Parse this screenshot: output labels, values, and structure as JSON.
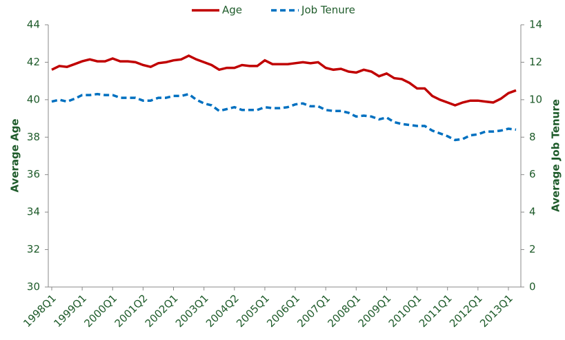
{
  "chart_data": {
    "type": "line",
    "y_label": "Average Age",
    "y2_label": "Average Job Tenure",
    "categories": [
      "1998Q1",
      null,
      null,
      null,
      "1999Q1",
      null,
      null,
      null,
      "2000Q1",
      null,
      null,
      null,
      "2001Q2",
      null,
      null,
      null,
      "2002Q1",
      null,
      null,
      null,
      "2003Q1",
      null,
      null,
      null,
      "2004Q2",
      null,
      null,
      null,
      "2005Q1",
      null,
      null,
      null,
      "2006Q1",
      null,
      null,
      null,
      "2007Q1",
      null,
      null,
      null,
      "2008Q1",
      null,
      null,
      null,
      "2009Q1",
      null,
      null,
      null,
      "2010Q1",
      null,
      null,
      null,
      "2011Q1",
      null,
      null,
      null,
      "2012Q1",
      null,
      null,
      null,
      "2013Q1",
      null
    ],
    "series": [
      {
        "name": "Age",
        "color": "#c00000",
        "dash": false,
        "values": [
          41.6,
          41.8,
          41.75,
          41.9,
          42.05,
          42.15,
          42.05,
          42.05,
          42.2,
          42.05,
          42.05,
          42.0,
          41.85,
          41.75,
          41.95,
          42.0,
          42.1,
          42.15,
          42.35,
          42.15,
          42.0,
          41.85,
          41.6,
          41.7,
          41.7,
          41.85,
          41.8,
          41.8,
          42.1,
          41.9,
          41.9,
          41.9,
          41.95,
          42.0,
          41.95,
          42.0,
          41.7,
          41.6,
          41.65,
          41.5,
          41.45,
          41.6,
          41.5,
          41.25,
          41.4,
          41.15,
          41.1,
          40.9,
          40.6,
          40.6,
          40.2,
          40.0,
          39.85,
          39.7,
          39.85,
          39.95,
          39.95,
          39.9,
          39.85,
          40.05,
          40.35,
          40.5
        ]
      },
      {
        "name": "Job Tenure",
        "color": "#0070c0",
        "dash": true,
        "axis": "y2",
        "values": [
          9.9,
          10.0,
          9.9,
          10.05,
          10.25,
          10.25,
          10.3,
          10.25,
          10.25,
          10.1,
          10.1,
          10.1,
          9.95,
          9.95,
          10.1,
          10.1,
          10.2,
          10.2,
          10.3,
          10.0,
          9.8,
          9.7,
          9.4,
          9.5,
          9.6,
          9.45,
          9.45,
          9.45,
          9.6,
          9.55,
          9.55,
          9.6,
          9.75,
          9.8,
          9.65,
          9.65,
          9.45,
          9.4,
          9.4,
          9.3,
          9.1,
          9.15,
          9.1,
          8.95,
          9.05,
          8.8,
          8.7,
          8.65,
          8.6,
          8.6,
          8.35,
          8.2,
          8.05,
          7.85,
          7.9,
          8.1,
          8.15,
          8.3,
          8.3,
          8.35,
          8.45,
          8.4
        ]
      }
    ],
    "ylim": [
      30,
      44
    ],
    "yticks": [
      30,
      32,
      34,
      36,
      38,
      40,
      42,
      44
    ],
    "y2lim": [
      0,
      14
    ],
    "y2ticks": [
      0,
      2,
      4,
      6,
      8,
      10,
      12,
      14
    ],
    "legend": "top",
    "grid": false
  }
}
